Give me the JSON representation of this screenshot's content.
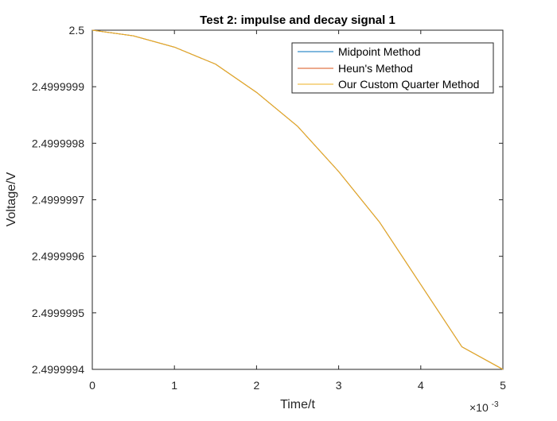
{
  "chart_data": {
    "type": "line",
    "title": "Test 2: impulse and decay signal 1",
    "xlabel": "Time/t",
    "ylabel": "Voltage/V",
    "x_exponent_label": "×10",
    "x_exponent_power": "-3",
    "xlim": [
      0,
      0.005
    ],
    "ylim": [
      2.4999994,
      2.5
    ],
    "xticks": [
      0,
      0.001,
      0.002,
      0.003,
      0.004,
      0.005
    ],
    "xtick_labels": [
      "0",
      "1",
      "2",
      "3",
      "4",
      "5"
    ],
    "yticks": [
      2.4999994,
      2.4999995,
      2.4999996,
      2.4999997,
      2.4999998,
      2.4999999,
      2.5
    ],
    "ytick_labels": [
      "2.4999994",
      "2.4999995",
      "2.4999996",
      "2.4999997",
      "2.4999998",
      "2.4999999",
      "2.5"
    ],
    "grid": false,
    "legend_position": "top-right",
    "series": [
      {
        "name": "Midpoint Method",
        "color": "#0072BD",
        "x": [
          0,
          0.0005,
          0.001,
          0.0015,
          0.002,
          0.0025,
          0.003,
          0.0035,
          0.004,
          0.0045,
          0.005
        ],
        "y": [
          2.5,
          2.49999999,
          2.49999997,
          2.49999994,
          2.49999989,
          2.49999983,
          2.49999975,
          2.49999966,
          2.49999955,
          2.49999944,
          2.4999994
        ]
      },
      {
        "name": "Heun's Method",
        "color": "#D95319",
        "x": [
          0,
          0.0005,
          0.001,
          0.0015,
          0.002,
          0.0025,
          0.003,
          0.0035,
          0.004,
          0.0045,
          0.005
        ],
        "y": [
          2.5,
          2.49999999,
          2.49999997,
          2.49999994,
          2.49999989,
          2.49999983,
          2.49999975,
          2.49999966,
          2.49999955,
          2.49999944,
          2.4999994
        ]
      },
      {
        "name": "Our Custom Quarter Method",
        "color": "#EDB120",
        "x": [
          0,
          0.0005,
          0.001,
          0.0015,
          0.002,
          0.0025,
          0.003,
          0.0035,
          0.004,
          0.0045,
          0.005
        ],
        "y": [
          2.5,
          2.49999999,
          2.49999997,
          2.49999994,
          2.49999989,
          2.49999983,
          2.49999975,
          2.49999966,
          2.49999955,
          2.49999944,
          2.4999994
        ]
      }
    ]
  }
}
